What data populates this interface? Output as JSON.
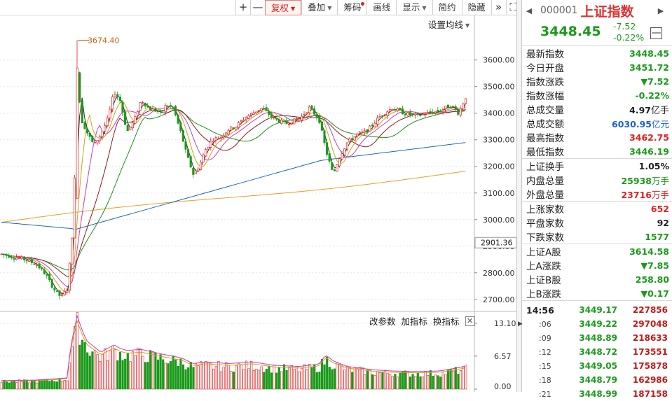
{
  "toolbar": {
    "buttons": [
      {
        "label": "+",
        "has_dropdown": false
      },
      {
        "label": "—",
        "has_dropdown": false
      },
      {
        "label": "复权",
        "has_dropdown": true,
        "active": true
      },
      {
        "label": "叠加",
        "has_dropdown": true
      },
      {
        "label": "筹码",
        "has_dropdown": false,
        "has_dot": true
      },
      {
        "label": "画线",
        "has_dropdown": false
      },
      {
        "label": "显示",
        "has_dropdown": true
      },
      {
        "label": "简约",
        "has_dropdown": false
      },
      {
        "label": "隐藏",
        "has_dropdown": false
      },
      {
        "label": "»",
        "has_dropdown": false
      },
      {
        "label": "⛶",
        "has_dropdown": false
      }
    ],
    "ma_setting_label": "设置均线",
    "high_annotation": "3674.40",
    "current_axis_price": "2901.36"
  },
  "indicator_bar": {
    "change_params": "改参数",
    "add_indicator": "加指标",
    "switch_indicator": "换指标",
    "close": "✕"
  },
  "chart_data": {
    "type": "candlestick",
    "price_axis_labels": [
      "3600.00",
      "3500.00",
      "3400.00",
      "3300.00",
      "3200.00",
      "3100.00",
      "3000.00",
      "2900.00",
      "2800.00",
      "2700.00"
    ],
    "price_range": [
      2660,
      3715
    ],
    "volume_axis_labels": [
      "13.10",
      "6.57",
      "0.00"
    ],
    "volume_range": [
      0,
      13.1
    ],
    "annotated_high": 3674.4,
    "annotated_current": 2901.36,
    "ma_colors": {
      "ma5": "#333333",
      "ma10": "#d4a017",
      "ma20": "#c040c0",
      "ma30": "#1e8f1e",
      "ma60": "#8b1a1a",
      "ma120": "#2166c0",
      "ma250": "#e8a020"
    },
    "up_color": "#e02020",
    "down_color": "#1a9a1a",
    "candle_count": 185,
    "anchors": [
      [
        0,
        2870
      ],
      [
        10,
        2860
      ],
      [
        20,
        2850
      ],
      [
        30,
        2830
      ],
      [
        38,
        2790
      ],
      [
        44,
        2740
      ],
      [
        50,
        2710
      ],
      [
        56,
        2740
      ],
      [
        58,
        2860
      ],
      [
        61,
        3000
      ],
      [
        64,
        3580
      ],
      [
        67,
        3380
      ],
      [
        72,
        3330
      ],
      [
        78,
        3280
      ],
      [
        84,
        3320
      ],
      [
        90,
        3380
      ],
      [
        95,
        3480
      ],
      [
        100,
        3450
      ],
      [
        106,
        3330
      ],
      [
        112,
        3370
      ],
      [
        118,
        3450
      ],
      [
        124,
        3420
      ],
      [
        130,
        3410
      ],
      [
        135,
        3400
      ],
      [
        139,
        3430
      ],
      [
        145,
        3420
      ],
      [
        152,
        3320
      ],
      [
        156,
        3250
      ],
      [
        162,
        3170
      ],
      [
        167,
        3200
      ],
      [
        172,
        3260
      ],
      [
        178,
        3300
      ],
      [
        185,
        3310
      ],
      [
        192,
        3340
      ],
      [
        198,
        3350
      ],
      [
        205,
        3380
      ],
      [
        212,
        3400
      ],
      [
        220,
        3420
      ],
      [
        230,
        3380
      ],
      [
        240,
        3360
      ],
      [
        252,
        3380
      ],
      [
        260,
        3420
      ],
      [
        268,
        3380
      ],
      [
        274,
        3260
      ],
      [
        280,
        3170
      ],
      [
        286,
        3240
      ],
      [
        292,
        3290
      ],
      [
        300,
        3320
      ],
      [
        308,
        3330
      ],
      [
        314,
        3360
      ],
      [
        320,
        3390
      ],
      [
        330,
        3420
      ],
      [
        340,
        3400
      ],
      [
        350,
        3390
      ],
      [
        360,
        3400
      ],
      [
        370,
        3410
      ],
      [
        380,
        3430
      ],
      [
        386,
        3400
      ],
      [
        392,
        3460
      ]
    ],
    "volume_profile": [
      [
        0,
        1.5
      ],
      [
        30,
        1.6
      ],
      [
        45,
        1.8
      ],
      [
        56,
        2.0
      ],
      [
        58,
        7.0
      ],
      [
        61,
        10.0
      ],
      [
        64,
        13.0
      ],
      [
        67,
        11.0
      ],
      [
        72,
        8.5
      ],
      [
        84,
        6.5
      ],
      [
        95,
        7.8
      ],
      [
        100,
        7.2
      ],
      [
        106,
        6.8
      ],
      [
        118,
        7.0
      ],
      [
        135,
        6.2
      ],
      [
        152,
        5.5
      ],
      [
        162,
        4.5
      ],
      [
        172,
        4.8
      ],
      [
        192,
        4.5
      ],
      [
        212,
        4.8
      ],
      [
        230,
        4.2
      ],
      [
        252,
        4.0
      ],
      [
        268,
        4.4
      ],
      [
        274,
        6.0
      ],
      [
        280,
        5.0
      ],
      [
        292,
        4.0
      ],
      [
        314,
        3.4
      ],
      [
        330,
        3.2
      ],
      [
        350,
        3.1
      ],
      [
        370,
        3.2
      ],
      [
        392,
        4.0
      ]
    ]
  },
  "panel": {
    "code": "000001",
    "name": "上证指数",
    "price": "3448.45",
    "change": "-7.52",
    "change_pct": "-0.22%",
    "minimize": "—",
    "stats1": [
      {
        "label": "最新指数",
        "value": "3448.45",
        "color": "green"
      },
      {
        "label": "今日开盘",
        "value": "3451.72",
        "color": "green"
      },
      {
        "label": "指数涨跌",
        "value": "▼7.52",
        "color": "green"
      },
      {
        "label": "指数涨幅",
        "value": "-0.22%",
        "color": "green"
      },
      {
        "label": "总成交量",
        "value": "4.97",
        "unit": "亿手",
        "color": "black"
      },
      {
        "label": "总成交额",
        "value": "6030.95",
        "unit": "亿元",
        "color": "blue"
      },
      {
        "label": "最高指数",
        "value": "3462.75",
        "color": "red"
      },
      {
        "label": "最低指数",
        "value": "3446.19",
        "color": "green"
      }
    ],
    "stats2": [
      {
        "label": "上证换手",
        "value": "1.05%",
        "color": "black"
      },
      {
        "label": "内盘总量",
        "value": "25938",
        "unit": "万手",
        "color": "green"
      },
      {
        "label": "外盘总量",
        "value": "23716",
        "unit": "万手",
        "color": "red"
      }
    ],
    "stats3": [
      {
        "label": "上涨家数",
        "value": "652",
        "color": "red"
      },
      {
        "label": "平盘家数",
        "value": "92",
        "color": "black"
      },
      {
        "label": "下跌家数",
        "value": "1577",
        "color": "green"
      }
    ],
    "stats4": [
      {
        "label": "上证A股",
        "value": "3614.58",
        "color": "green"
      },
      {
        "label": "上A涨跌",
        "value": "▼7.85",
        "color": "green"
      },
      {
        "label": "上证B股",
        "value": "258.80",
        "color": "green"
      },
      {
        "label": "上B涨跌",
        "value": "▼0.17",
        "color": "green"
      }
    ],
    "trades": [
      {
        "time": "14:56",
        "price": "3449.17",
        "volume": "227856"
      },
      {
        "time": ":06",
        "price": "3449.22",
        "volume": "297048"
      },
      {
        "time": ":09",
        "price": "3448.89",
        "volume": "218633"
      },
      {
        "time": ":12",
        "price": "3448.72",
        "volume": "173551"
      },
      {
        "time": ":15",
        "price": "3449.05",
        "volume": "175878"
      },
      {
        "time": ":18",
        "price": "3448.79",
        "volume": "162986"
      },
      {
        "time": ":21",
        "price": "3448.99",
        "volume": "187158"
      }
    ]
  }
}
